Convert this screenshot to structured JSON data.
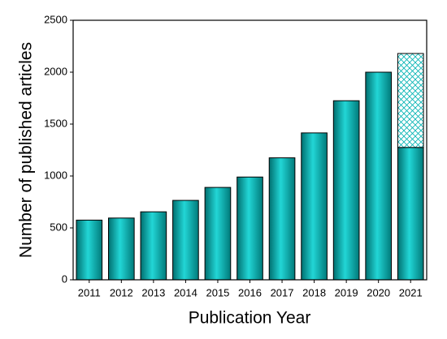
{
  "chart_data": {
    "type": "bar",
    "x_label": "Publication Year",
    "y_label": "Number of published articles",
    "categories": [
      "2011",
      "2012",
      "2013",
      "2014",
      "2015",
      "2016",
      "2017",
      "2018",
      "2019",
      "2020",
      "2021"
    ],
    "series": [
      {
        "color": "#00b3b3",
        "values": [
          575,
          595,
          655,
          765,
          890,
          990,
          1175,
          1415,
          1725,
          2000,
          1275
        ]
      },
      {
        "color": "#00b3b3",
        "pattern": "crosshatch",
        "values": [
          null,
          null,
          null,
          null,
          null,
          null,
          null,
          null,
          null,
          null,
          905
        ]
      }
    ],
    "ylim": [
      0,
      2500
    ],
    "yticks": [
      0,
      500,
      1000,
      1500,
      2000,
      2500
    ],
    "grid": false
  }
}
